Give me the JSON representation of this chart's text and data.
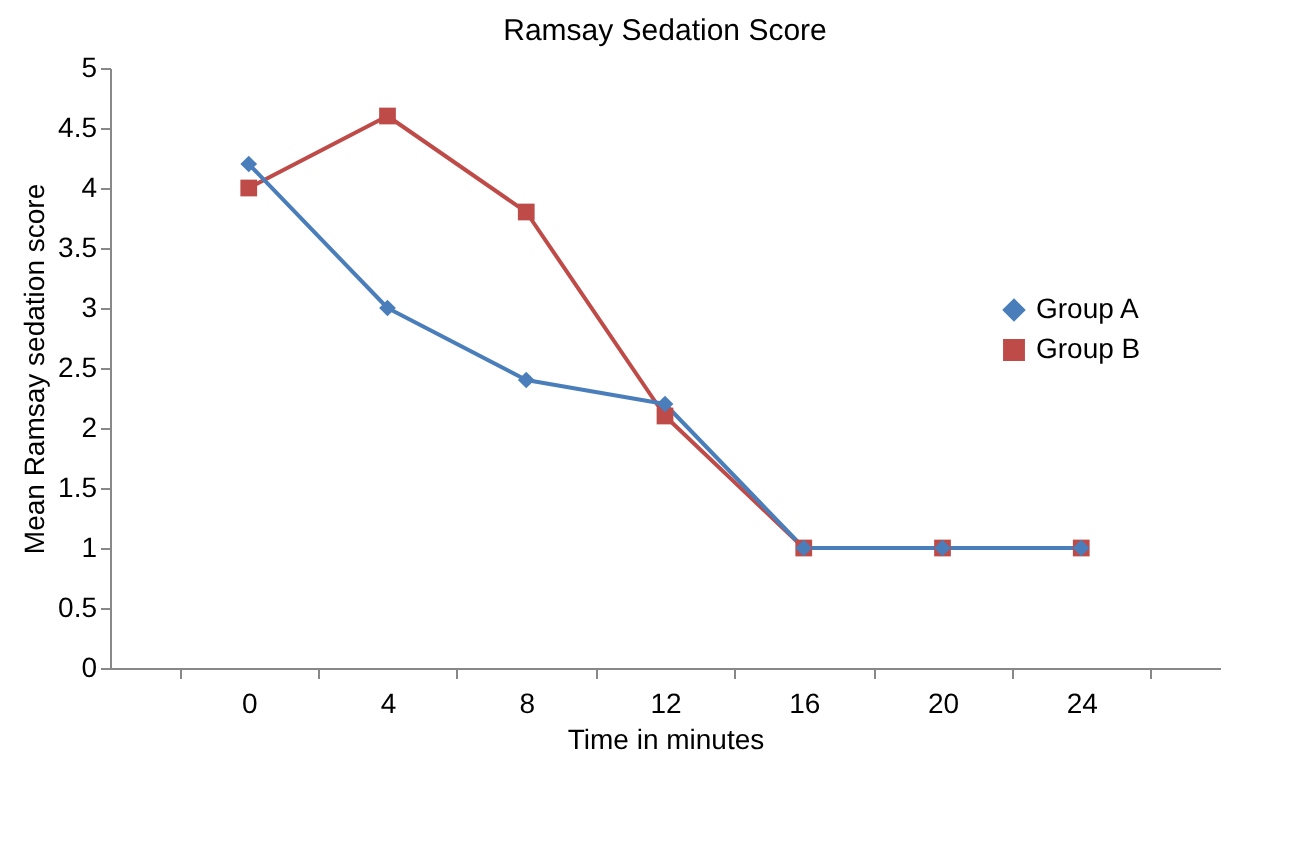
{
  "chart_data": {
    "type": "line",
    "title": "Ramsay Sedation Score",
    "xlabel": "Time in minutes",
    "ylabel": "Mean Ramsay sedation score",
    "categories": [
      "0",
      "4",
      "8",
      "12",
      "16",
      "20",
      "24"
    ],
    "series": [
      {
        "name": "Group A",
        "color": "#4a7ebb",
        "marker": "diamond",
        "values": [
          4.2,
          3.0,
          2.4,
          2.2,
          1,
          1,
          1
        ]
      },
      {
        "name": "Group B",
        "color": "#be4b48",
        "marker": "square",
        "values": [
          4.0,
          4.6,
          3.8,
          2.1,
          1,
          1,
          1
        ]
      }
    ],
    "ylim": [
      0,
      5
    ],
    "yticks": [
      0,
      0.5,
      1,
      1.5,
      2,
      2.5,
      3,
      3.5,
      4,
      4.5,
      5
    ],
    "legend": "right",
    "grid": false
  }
}
